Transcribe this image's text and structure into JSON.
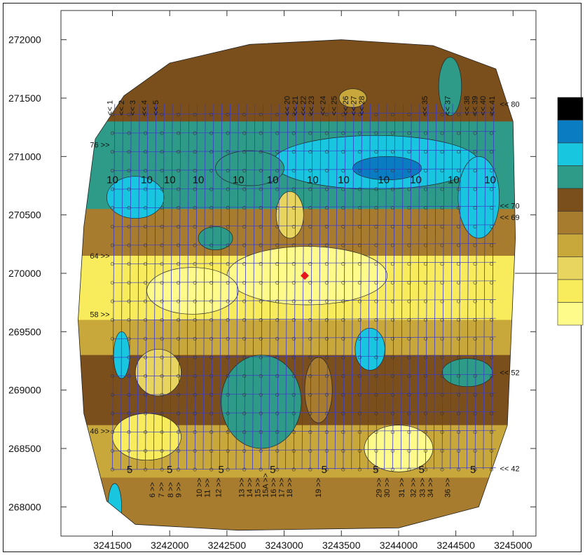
{
  "chart_data": {
    "type": "heatmap",
    "title": "",
    "xlabel": "",
    "ylabel": "",
    "x_ticks": [
      3241500,
      3242000,
      3242500,
      3243000,
      3243500,
      3244000,
      3244500,
      3245000
    ],
    "y_ticks": [
      268000,
      268500,
      269000,
      269500,
      270000,
      270500,
      271000,
      271500,
      272000
    ],
    "xlim": [
      3241050,
      3245200
    ],
    "ylim": [
      267750,
      272250
    ],
    "grid": false,
    "legend_position": "right",
    "color_scale": [
      {
        "color": "#fffb8a"
      },
      {
        "color": "#f8ec5c"
      },
      {
        "color": "#e8d560"
      },
      {
        "color": "#c9a83b"
      },
      {
        "color": "#a87c2e"
      },
      {
        "color": "#7a4f1c"
      },
      {
        "color": "#2e9a88"
      },
      {
        "color": "#18c6e0"
      },
      {
        "color": "#0a7cc2"
      },
      {
        "color": "#000000"
      }
    ],
    "contour_labels": [
      {
        "text": "10",
        "x": 3241500,
        "y": 270800
      },
      {
        "text": "10",
        "x": 3241800,
        "y": 270800
      },
      {
        "text": "10",
        "x": 3242000,
        "y": 270800
      },
      {
        "text": "10",
        "x": 3242250,
        "y": 270800
      },
      {
        "text": "10",
        "x": 3242600,
        "y": 270800
      },
      {
        "text": "10",
        "x": 3242900,
        "y": 270800
      },
      {
        "text": "10",
        "x": 3243250,
        "y": 270800
      },
      {
        "text": "10",
        "x": 3243520,
        "y": 270800
      },
      {
        "text": "10",
        "x": 3243870,
        "y": 270800
      },
      {
        "text": "10",
        "x": 3244150,
        "y": 270800
      },
      {
        "text": "10",
        "x": 3244480,
        "y": 270800
      },
      {
        "text": "10",
        "x": 3244800,
        "y": 270800
      },
      {
        "text": "5",
        "x": 3241650,
        "y": 268320
      },
      {
        "text": "5",
        "x": 3242000,
        "y": 268320
      },
      {
        "text": "5",
        "x": 3242450,
        "y": 268320
      },
      {
        "text": "5",
        "x": 3242900,
        "y": 268320
      },
      {
        "text": "5",
        "x": 3243350,
        "y": 268320
      },
      {
        "text": "5",
        "x": 3243800,
        "y": 268320
      },
      {
        "text": "5",
        "x": 3244200,
        "y": 268320
      },
      {
        "text": "5",
        "x": 3244650,
        "y": 268320
      }
    ],
    "survey_line_labels_top": [
      {
        "text": "<< 1",
        "x": 3241500
      },
      {
        "text": "<< 2",
        "x": 3241600
      },
      {
        "text": "<< 3",
        "x": 3241700
      },
      {
        "text": "<< 4",
        "x": 3241800
      },
      {
        "text": "<< 5",
        "x": 3241900
      },
      {
        "text": "<< 20",
        "x": 3243050
      },
      {
        "text": "<< 21",
        "x": 3243120
      },
      {
        "text": "<< 22",
        "x": 3243190
      },
      {
        "text": "<< 23",
        "x": 3243260
      },
      {
        "text": "<< 24",
        "x": 3243360
      },
      {
        "text": "<< 25",
        "x": 3243460
      },
      {
        "text": "<< 26",
        "x": 3243560
      },
      {
        "text": "<< 27",
        "x": 3243630
      },
      {
        "text": "<< 28",
        "x": 3243700
      },
      {
        "text": "<< 35",
        "x": 3244250
      },
      {
        "text": "<< 37",
        "x": 3244450
      },
      {
        "text": "<< 38",
        "x": 3244620
      },
      {
        "text": "<< 39",
        "x": 3244690
      },
      {
        "text": "<< 40",
        "x": 3244760
      },
      {
        "text": "<< 41",
        "x": 3244840
      }
    ],
    "survey_line_labels_bottom": [
      {
        "text": "6 >>",
        "x": 3241870
      },
      {
        "text": "7 >>",
        "x": 3241950
      },
      {
        "text": "8 >>",
        "x": 3242030
      },
      {
        "text": "9 >>",
        "x": 3242100
      },
      {
        "text": "10 >>",
        "x": 3242280
      },
      {
        "text": "11 >>",
        "x": 3242350
      },
      {
        "text": "12 >>",
        "x": 3242450
      },
      {
        "text": "13 >>",
        "x": 3242650
      },
      {
        "text": "14 >>",
        "x": 3242720
      },
      {
        "text": "15 >>",
        "x": 3242790
      },
      {
        "text": "15A >>",
        "x": 3242860
      },
      {
        "text": "16 >>",
        "x": 3242930
      },
      {
        "text": "17 >>",
        "x": 3243000
      },
      {
        "text": "18 >>",
        "x": 3243070
      },
      {
        "text": "19 >>",
        "x": 3243320
      },
      {
        "text": "29 >>",
        "x": 3243850
      },
      {
        "text": "30 >>",
        "x": 3243920
      },
      {
        "text": "31 >>",
        "x": 3244050
      },
      {
        "text": "32 >>",
        "x": 3244150
      },
      {
        "text": "33 >>",
        "x": 3244230
      },
      {
        "text": "34 >>",
        "x": 3244300
      },
      {
        "text": "36 >>",
        "x": 3244450
      }
    ],
    "survey_line_labels_side": [
      {
        "text": "76 >>",
        "y": 271100,
        "side": "left"
      },
      {
        "text": "64 >>",
        "y": 270150,
        "side": "left"
      },
      {
        "text": "58 >>",
        "y": 269650,
        "side": "left"
      },
      {
        "text": "46 >>",
        "y": 268650,
        "side": "left"
      },
      {
        "text": "<< 80",
        "y": 271450,
        "side": "right"
      },
      {
        "text": "<< 70",
        "y": 270580,
        "side": "right"
      },
      {
        "text": "<< 69",
        "y": 270480,
        "side": "right"
      },
      {
        "text": "<< 52",
        "y": 269150,
        "side": "right"
      },
      {
        "text": "<< 42",
        "y": 268330,
        "side": "right"
      }
    ],
    "marker": {
      "x": 3243180,
      "y": 269980,
      "color": "#e8141e",
      "shape": "diamond"
    }
  }
}
